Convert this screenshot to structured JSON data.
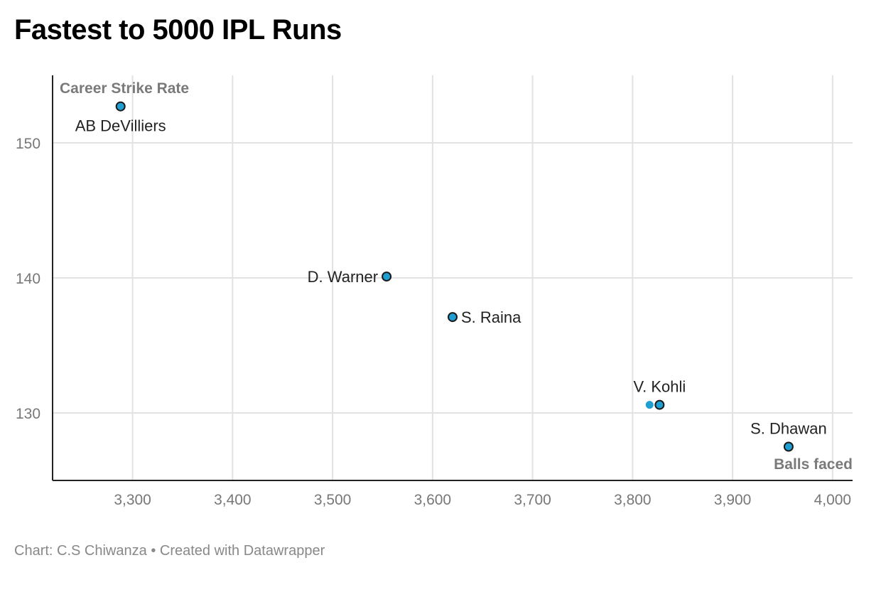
{
  "title": "Fastest to 5000 IPL Runs",
  "footer": {
    "source": "Chart: C.S Chiwanza",
    "separator": "•",
    "credit": "Created with Datawrapper"
  },
  "colors": {
    "point": "#1f9fd1",
    "grid": "#e2e2e2",
    "axis": "#222222"
  },
  "chart_data": {
    "type": "scatter",
    "xlabel": "Balls faced",
    "ylabel": "Career Strike Rate",
    "xlim": [
      3220,
      4020
    ],
    "ylim": [
      125,
      155
    ],
    "x_ticks": [
      3300,
      3400,
      3500,
      3600,
      3700,
      3800,
      3900,
      4000
    ],
    "x_tick_labels": [
      "3,300",
      "3,400",
      "3,500",
      "3,600",
      "3,700",
      "3,800",
      "3,900",
      "4,000"
    ],
    "y_ticks": [
      130,
      140,
      150
    ],
    "y_tick_labels": [
      "130",
      "140",
      "150"
    ],
    "grid": true,
    "points": [
      {
        "name": "AB DeVilliers",
        "x": 3288,
        "y": 152.7,
        "label_pos": "below"
      },
      {
        "name": "D. Warner",
        "x": 3554,
        "y": 140.1,
        "label_pos": "left"
      },
      {
        "name": "S. Raina",
        "x": 3620,
        "y": 137.1,
        "label_pos": "right"
      },
      {
        "name": "V. Kohli",
        "x": 3827,
        "y": 130.6,
        "label_pos": "above"
      },
      {
        "name": "",
        "x": 3817,
        "y": 130.6,
        "label_pos": "none",
        "outline": false
      },
      {
        "name": "S. Dhawan",
        "x": 3956,
        "y": 127.5,
        "label_pos": "above"
      }
    ]
  }
}
